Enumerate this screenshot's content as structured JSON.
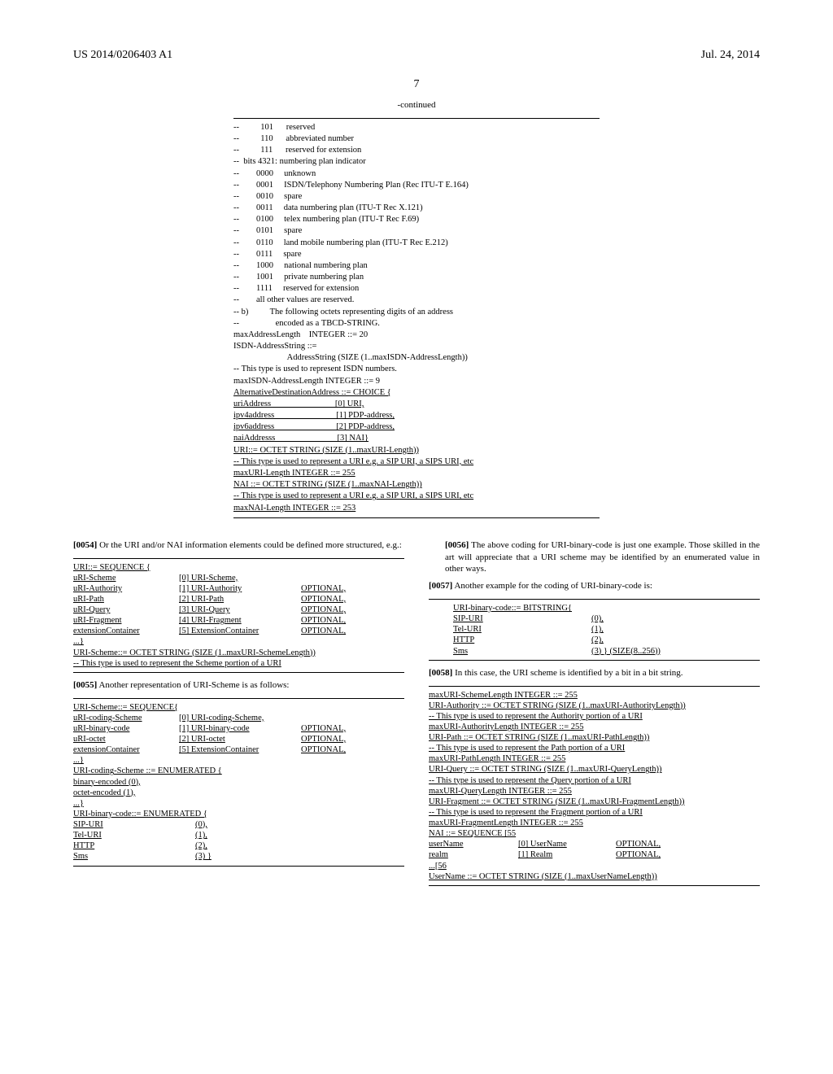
{
  "header": {
    "pub_number": "US 2014/0206403 A1",
    "pub_date": "Jul. 24, 2014"
  },
  "page_number": "7",
  "continued_label": "-continued",
  "block1": {
    "lines": [
      "--          101      reserved",
      "--          110      abbreviated number",
      "--          111      reserved for extension",
      "--  bits 4321: numbering plan indicator",
      "--        0000     unknown",
      "--        0001     ISDN/Telephony Numbering Plan (Rec ITU-T E.164)",
      "--        0010     spare",
      "--        0011     data numbering plan (ITU-T Rec X.121)",
      "--        0100     telex numbering plan (ITU-T Rec F.69)",
      "--        0101     spare",
      "--        0110     land mobile numbering plan (ITU-T Rec E.212)",
      "--        0111     spare",
      "--        1000     national numbering plan",
      "--        1001     private numbering plan",
      "--        1111     reserved for extension",
      "--        all other values are reserved.",
      "-- b)          The following octets representing digits of an address",
      "--                 encoded as a TBCD-STRING.",
      "maxAddressLength    INTEGER ::= 20",
      "ISDN-AddressString ::=",
      "                         AddressString (SIZE (1..maxISDN-AddressLength))",
      "-- This type is used to represent ISDN numbers.",
      "maxISDN-AddressLength INTEGER ::= 9"
    ],
    "ul_lines": [
      "AlternativeDestinationAddress ::= CHOICE {",
      "uriAddress                              [0] URI,",
      "ipv4address                             [1] PDP-address,",
      "ipv6address                             [2] PDP-address,",
      "naiAddresss                             [3] NAI}",
      "URI::= OCTET STRING (SIZE (1..maxURI-Length))",
      "-- This type is used to represent a URI e.g. a SIP URI, a SIPS URI, etc",
      "maxURI-Length INTEGER ::= 255",
      "NAI ::= OCTET STRING (SIZE (1..maxNAI-Length))",
      "-- This type is used to represent a URI e.g. a SIP URI, a SIPS URI, etc",
      "maxNAI-Length INTEGER ::= 253"
    ]
  },
  "para54": {
    "num": "[0054]",
    "text": "Or the URI and/or NAI information elements could be defined more structured, e.g.:"
  },
  "block2": {
    "rows": [
      [
        "URI::= SEQUENCE {",
        "",
        ""
      ],
      [
        "uRI-Scheme",
        "[0] URI-Scheme,",
        ""
      ],
      [
        "uRI-Authority",
        "[1] URI-Authority",
        "OPTIONAL,"
      ],
      [
        "uRI-Path",
        "[2] URI-Path",
        "OPTIONAL,"
      ],
      [
        "uRI-Query",
        "[3] URI-Query",
        "OPTIONAL,"
      ],
      [
        "uRI-Fragment",
        "[4] URI-Fragment",
        "OPTIONAL,"
      ],
      [
        "extensionContainer",
        "[5] ExtensionContainer",
        "OPTIONAL,"
      ],
      [
        "...}",
        "",
        ""
      ]
    ],
    "tail": [
      "URI-Scheme::= OCTET STRING (SIZE (1..maxURI-SchemeLength))",
      "-- This type is used to represent the Scheme portion of a URI"
    ]
  },
  "para55": {
    "num": "[0055]",
    "text": "Another representation of URI-Scheme is as follows:"
  },
  "block3": {
    "rows": [
      [
        "URI-Scheme::= SEQUENCE{",
        "",
        ""
      ],
      [
        "uRI-coding-Scheme",
        "[0] URI-coding-Scheme,",
        ""
      ],
      [
        "uRI-binary-code",
        "[1] URI-binary-code",
        "OPTIONAL,"
      ],
      [
        "uRI-octet",
        "[2] URI-octet",
        "OPTIONAL,"
      ],
      [
        "extensionContainer",
        "[5] ExtensionContainer",
        "OPTIONAL,"
      ],
      [
        "...}",
        "",
        ""
      ]
    ],
    "enum1_header": "URI-coding-Scheme ::= ENUMERATED {",
    "enum1": [
      "binary-encoded (0),",
      "octet-encoded (1),",
      "...}"
    ],
    "enum2_header": "URI-binary-code::= ENUMERATED {",
    "enum2": [
      [
        "SIP-URI",
        "(0),"
      ],
      [
        "Tel-URI",
        "(1),"
      ],
      [
        "HTTP",
        "(2),"
      ],
      [
        "Sms",
        "(3) }"
      ]
    ]
  },
  "para56": {
    "num": "[0056]",
    "text": "The above coding for URI-binary-code is just one example. Those skilled in the art will appreciate that a URI scheme may be identified by an enumerated value in other ways."
  },
  "para57": {
    "num": "[0057]",
    "text": "Another example for the coding of URI-binary-code is:"
  },
  "block4": {
    "header": "URI-binary-code::= BITSTRING{",
    "rows": [
      [
        "SIP-URI",
        "(0),"
      ],
      [
        "Tel-URI",
        "(1),"
      ],
      [
        "HTTP",
        "(2),"
      ],
      [
        "Sms",
        "(3) } (SIZE(8..256))"
      ]
    ]
  },
  "para58": {
    "num": "[0058]",
    "text": "In this case, the URI scheme is identified by a bit in a bit string."
  },
  "block5": {
    "lines": [
      "maxURI-SchemeLength INTEGER ::= 255",
      "URI-Authority ::= OCTET STRING (SIZE (1..maxURI-AuthorityLength))",
      "-- This type is used to represent the Authority portion of a URI",
      "maxURI-AuthorityLength INTEGER ::= 255",
      "URI-Path ::= OCTET STRING (SIZE (1..maxURI-PathLength))",
      "-- This type is used to represent the Path portion of a URI",
      "maxURI-PathLength INTEGER ::= 255",
      "URI-Query ::= OCTET STRING (SIZE (1..maxURI-QueryLength))",
      "-- This type is used to represent the Query portion of a URI",
      "maxURI-QueryLength INTEGER ::= 255",
      "URI-Fragment ::= OCTET STRING (SIZE (1..maxURI-FragmentLength))",
      "-- This type is used to represent the Fragment portion of a URI",
      "maxURI-FragmentLength INTEGER ::= 255",
      "NAI ::= SEQUENCE [55"
    ],
    "rows": [
      [
        "userName",
        "[0] UserName",
        "OPTIONAL,"
      ],
      [
        "realm",
        "[1] Realm",
        "OPTIONAL,"
      ]
    ],
    "tail": [
      "...[56",
      "UserName ::= OCTET STRING (SIZE (1..maxUserNameLength))"
    ]
  }
}
